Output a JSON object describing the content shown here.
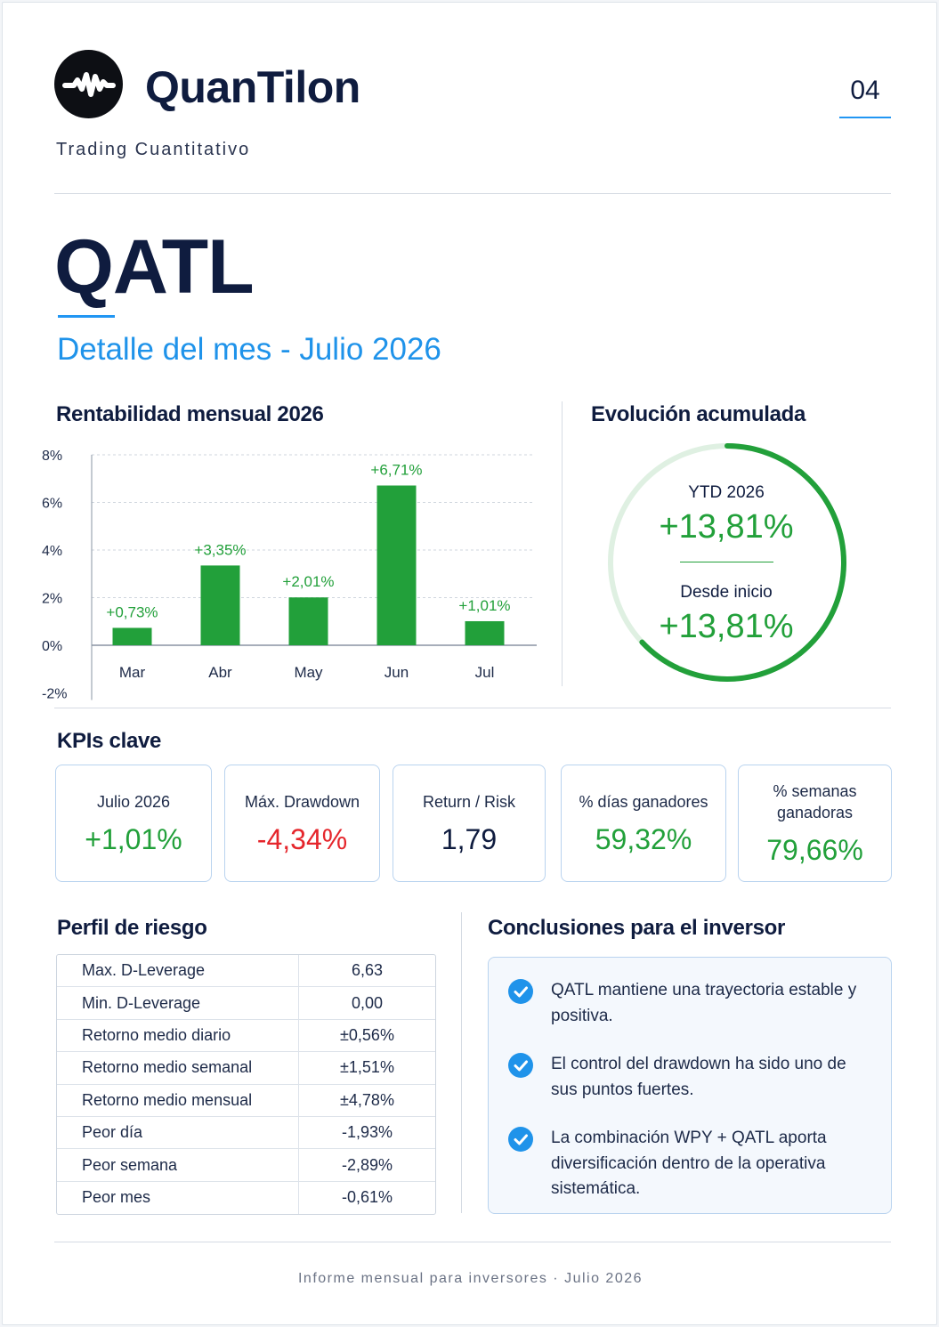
{
  "header": {
    "brand": "QuanTilon",
    "tagline": "Trading Cuantitativo",
    "page_number": "04",
    "logo_icon": "waveform-icon"
  },
  "title": "QATL",
  "subtitle": "Detalle del mes - Julio 2026",
  "monthly_chart": {
    "section_title": "Rentabilidad mensual 2026"
  },
  "chart_data": {
    "type": "bar",
    "categories": [
      "Mar",
      "Abr",
      "May",
      "Jun",
      "Jul"
    ],
    "values": [
      0.73,
      3.35,
      2.01,
      6.71,
      1.01
    ],
    "data_labels": [
      "+0,73%",
      "+3,35%",
      "+2,01%",
      "+6,71%",
      "+1,01%"
    ],
    "yticks": [
      -2,
      0,
      2,
      4,
      6,
      8
    ],
    "ytick_labels": [
      "-2%",
      "0%",
      "2%",
      "4%",
      "6%",
      "8%"
    ],
    "ylim": [
      -2,
      8
    ],
    "grid": true,
    "bar_color": "#22a03a",
    "label_color": "#22a03a",
    "title": "",
    "xlabel": "",
    "ylabel": ""
  },
  "cumulative": {
    "section_title": "Evolución acumulada",
    "ytd_label": "YTD 2026",
    "ytd_value": "+13,81%",
    "since_start_label": "Desde inicio",
    "since_start_value": "+13,81%",
    "ring_fill_fraction": 0.63,
    "ring_color": "#22a03a",
    "ring_track_color": "#dff0e2"
  },
  "kpis": {
    "section_title": "KPIs clave",
    "items": [
      {
        "label": "Julio 2026",
        "value": "+1,01%",
        "tone": "green"
      },
      {
        "label": "Máx. Drawdown",
        "value": "-4,34%",
        "tone": "red"
      },
      {
        "label": "Return / Risk",
        "value": "1,79",
        "tone": "navy"
      },
      {
        "label": "% días ganadores",
        "value": "59,32%",
        "tone": "green"
      },
      {
        "label": "% semanas ganadoras",
        "value": "79,66%",
        "tone": "green"
      }
    ]
  },
  "risk_profile": {
    "section_title": "Perfil de riesgo",
    "rows": [
      {
        "label": "Max. D-Leverage",
        "value": "6,63",
        "tone": "navy"
      },
      {
        "label": "Min. D-Leverage",
        "value": "0,00",
        "tone": "navy"
      },
      {
        "label": "Retorno medio diario",
        "value": "±0,56%",
        "tone": "navy"
      },
      {
        "label": "Retorno medio semanal",
        "value": "±1,51%",
        "tone": "navy"
      },
      {
        "label": "Retorno medio mensual",
        "value": "±4,78%",
        "tone": "navy"
      },
      {
        "label": "Peor día",
        "value": "-1,93%",
        "tone": "red"
      },
      {
        "label": "Peor semana",
        "value": "-2,89%",
        "tone": "red"
      },
      {
        "label": "Peor mes",
        "value": "-0,61%",
        "tone": "red"
      }
    ]
  },
  "conclusions": {
    "section_title": "Conclusiones para el inversor",
    "check_icon": "check-circle-icon",
    "items": [
      "QATL mantiene una trayectoria estable y positiva.",
      "El control del drawdown ha sido uno de sus puntos fuertes.",
      "La combinación WPY + QATL aporta diversificación dentro de la operativa sistemática."
    ]
  },
  "footer": "Informe mensual para inversores · Julio 2026"
}
